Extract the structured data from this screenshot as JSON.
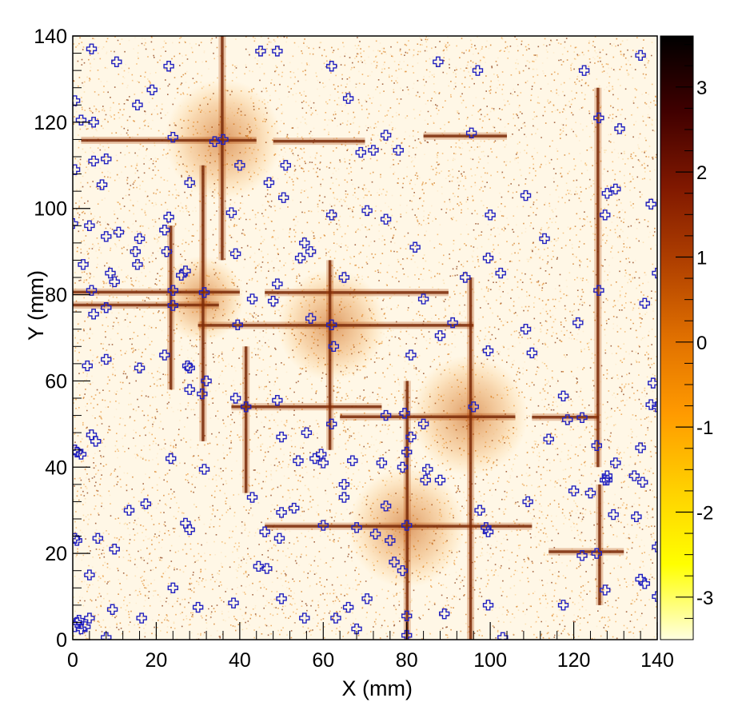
{
  "chart_data": {
    "type": "heatmap",
    "title": "",
    "xlabel": "X (mm)",
    "ylabel": "Y (mm)",
    "xlim": [
      0,
      140
    ],
    "ylim": [
      0,
      140
    ],
    "x_ticks": [
      0,
      20,
      40,
      60,
      80,
      100,
      120,
      140
    ],
    "y_ticks": [
      0,
      20,
      40,
      60,
      80,
      100,
      120,
      140
    ],
    "z_range": [
      -3.5,
      3.6
    ],
    "colorbar_ticks": [
      3,
      2,
      1,
      0,
      -1,
      -2,
      -3
    ],
    "colormap": [
      "#ffffe0",
      "#ffff00",
      "#ffd000",
      "#ff9a00",
      "#e07000",
      "#b04000",
      "#801800",
      "#400000",
      "#000000"
    ],
    "horizontal_lines": [
      {
        "y": 115.8,
        "x0": 2,
        "x1": 44
      },
      {
        "y": 115.6,
        "x0": 48,
        "x1": 70
      },
      {
        "y": 80.6,
        "x0": 0,
        "x1": 40
      },
      {
        "y": 80.5,
        "x0": 46,
        "x1": 90
      },
      {
        "y": 77.6,
        "x0": 0,
        "x1": 35
      },
      {
        "y": 72.9,
        "x0": 30,
        "x1": 96
      },
      {
        "y": 54,
        "x0": 38,
        "x1": 74
      },
      {
        "y": 51.7,
        "x0": 64,
        "x1": 106
      },
      {
        "y": 51.6,
        "x0": 110,
        "x1": 126
      },
      {
        "y": 26.3,
        "x0": 46,
        "x1": 110
      },
      {
        "y": 20.4,
        "x0": 114,
        "x1": 132
      },
      {
        "y": 116.8,
        "x0": 84,
        "x1": 104
      }
    ],
    "vertical_lines": [
      {
        "x": 35.8,
        "y0": 88,
        "y1": 140
      },
      {
        "x": 31.2,
        "y0": 46,
        "y1": 110
      },
      {
        "x": 23.5,
        "y0": 58,
        "y1": 96
      },
      {
        "x": 61.6,
        "y0": 44,
        "y1": 88
      },
      {
        "x": 80.1,
        "y0": 0,
        "y1": 60
      },
      {
        "x": 95.3,
        "y0": 0,
        "y1": 84
      },
      {
        "x": 41.5,
        "y0": 34,
        "y1": 68
      },
      {
        "x": 125.8,
        "y0": 40,
        "y1": 128
      },
      {
        "x": 126.2,
        "y0": 8,
        "y1": 36
      }
    ],
    "blobs": [
      {
        "x": 36,
        "y": 116,
        "r": 14
      },
      {
        "x": 62,
        "y": 73,
        "r": 13
      },
      {
        "x": 95,
        "y": 52,
        "r": 14
      },
      {
        "x": 80,
        "y": 26,
        "r": 14
      },
      {
        "x": 31,
        "y": 79,
        "r": 10
      }
    ],
    "markers": [
      [
        4.5,
        137
      ],
      [
        10.5,
        134
      ],
      [
        23,
        133
      ],
      [
        45,
        136.5
      ],
      [
        49,
        136.5
      ],
      [
        62,
        133
      ],
      [
        87.5,
        134
      ],
      [
        97,
        132
      ],
      [
        122.5,
        132
      ],
      [
        136,
        135.5
      ],
      [
        0.5,
        125
      ],
      [
        2,
        120.5
      ],
      [
        5,
        120
      ],
      [
        15.5,
        124
      ],
      [
        19,
        127.5
      ],
      [
        24,
        116.5
      ],
      [
        34,
        115.5
      ],
      [
        36,
        116
      ],
      [
        66,
        125.5
      ],
      [
        75,
        117
      ],
      [
        78,
        113.5
      ],
      [
        95.5,
        117.5
      ],
      [
        126,
        121
      ],
      [
        131,
        118.5
      ],
      [
        0.5,
        109
      ],
      [
        5,
        111
      ],
      [
        7,
        105.5
      ],
      [
        28,
        106
      ],
      [
        40,
        110
      ],
      [
        47,
        106
      ],
      [
        51,
        110
      ],
      [
        69,
        113
      ],
      [
        72,
        113.5
      ],
      [
        8,
        111.5
      ],
      [
        0,
        96.5
      ],
      [
        4,
        96
      ],
      [
        8,
        93.5
      ],
      [
        11,
        94.5
      ],
      [
        16,
        93
      ],
      [
        22,
        95
      ],
      [
        23,
        98
      ],
      [
        38,
        99
      ],
      [
        50.5,
        102.5
      ],
      [
        62,
        98.5
      ],
      [
        70.5,
        99.5
      ],
      [
        75,
        97.5
      ],
      [
        100,
        98.5
      ],
      [
        108.5,
        103
      ],
      [
        113,
        93
      ],
      [
        127.5,
        98.5
      ],
      [
        128,
        103.5
      ],
      [
        130,
        104.5
      ],
      [
        138.5,
        101
      ],
      [
        2.5,
        87
      ],
      [
        9,
        85
      ],
      [
        10,
        83
      ],
      [
        15,
        90
      ],
      [
        15.5,
        87
      ],
      [
        22.5,
        90
      ],
      [
        26,
        84.5
      ],
      [
        27,
        85.5
      ],
      [
        39,
        89.5
      ],
      [
        43,
        79
      ],
      [
        49,
        82.5
      ],
      [
        54.5,
        88.5
      ],
      [
        55.5,
        92
      ],
      [
        57,
        90
      ],
      [
        65,
        84
      ],
      [
        82,
        91
      ],
      [
        94,
        84
      ],
      [
        99.5,
        88.5
      ],
      [
        102.5,
        85
      ],
      [
        126,
        81
      ],
      [
        140,
        85
      ],
      [
        4.5,
        81
      ],
      [
        5,
        75.5
      ],
      [
        8,
        77
      ],
      [
        24,
        81
      ],
      [
        24,
        77.5
      ],
      [
        31.5,
        80.5
      ],
      [
        39.5,
        73
      ],
      [
        48,
        78.5
      ],
      [
        57,
        74.5
      ],
      [
        62,
        73
      ],
      [
        62.5,
        68
      ],
      [
        81,
        66
      ],
      [
        84,
        79
      ],
      [
        88,
        70.5
      ],
      [
        91,
        73.5
      ],
      [
        99.5,
        67
      ],
      [
        108.5,
        72
      ],
      [
        110,
        66.5
      ],
      [
        121,
        73.5
      ],
      [
        137,
        78
      ],
      [
        3.5,
        63.5
      ],
      [
        8,
        65
      ],
      [
        16,
        63
      ],
      [
        22,
        66
      ],
      [
        27.5,
        63.5
      ],
      [
        28,
        63
      ],
      [
        32,
        60
      ],
      [
        31,
        57
      ],
      [
        28,
        58
      ],
      [
        39,
        56
      ],
      [
        41.5,
        54
      ],
      [
        49,
        55.5
      ],
      [
        62,
        50
      ],
      [
        75,
        52
      ],
      [
        79.5,
        52.5
      ],
      [
        81,
        47
      ],
      [
        84,
        50
      ],
      [
        96,
        54
      ],
      [
        114,
        46.5
      ],
      [
        117.5,
        56.5
      ],
      [
        118.5,
        51
      ],
      [
        122,
        51.5
      ],
      [
        125.5,
        45
      ],
      [
        139,
        59.5
      ],
      [
        138.5,
        54.5
      ],
      [
        140,
        54
      ],
      [
        0.5,
        44
      ],
      [
        1,
        43.5
      ],
      [
        2,
        43
      ],
      [
        4.5,
        47.5
      ],
      [
        5.5,
        46
      ],
      [
        23.5,
        42
      ],
      [
        31.5,
        39.5
      ],
      [
        50,
        47
      ],
      [
        54,
        41.5
      ],
      [
        58,
        42
      ],
      [
        59.5,
        43
      ],
      [
        60,
        41
      ],
      [
        56,
        48
      ],
      [
        67,
        41.5
      ],
      [
        65,
        36
      ],
      [
        74,
        41
      ],
      [
        79,
        40
      ],
      [
        80,
        43.5
      ],
      [
        85,
        39.5
      ],
      [
        84.5,
        37
      ],
      [
        88,
        37
      ],
      [
        127.5,
        37
      ],
      [
        128,
        38
      ],
      [
        128,
        37
      ],
      [
        130,
        41
      ],
      [
        134.5,
        38
      ],
      [
        136,
        44.5
      ],
      [
        136.5,
        36.5
      ],
      [
        13.5,
        30
      ],
      [
        17.5,
        31.5
      ],
      [
        27,
        27
      ],
      [
        28,
        25.5
      ],
      [
        43,
        33
      ],
      [
        46,
        25
      ],
      [
        49.5,
        23.5
      ],
      [
        50,
        29.5
      ],
      [
        53,
        30.5
      ],
      [
        60,
        26.5
      ],
      [
        65,
        33
      ],
      [
        68,
        26
      ],
      [
        72.5,
        24.5
      ],
      [
        75,
        31
      ],
      [
        76,
        23
      ],
      [
        80,
        26.5
      ],
      [
        97.5,
        30
      ],
      [
        99,
        26
      ],
      [
        99.5,
        25
      ],
      [
        109,
        32
      ],
      [
        122,
        19.5
      ],
      [
        124,
        34
      ],
      [
        129.5,
        29
      ],
      [
        135,
        28.5
      ],
      [
        140,
        21.5
      ],
      [
        0.5,
        23.5
      ],
      [
        1,
        23
      ],
      [
        4,
        15
      ],
      [
        6,
        23.5
      ],
      [
        10,
        21
      ],
      [
        24,
        12
      ],
      [
        44.5,
        17
      ],
      [
        46.5,
        16.5
      ],
      [
        77,
        18
      ],
      [
        79,
        16
      ],
      [
        120,
        34.5
      ],
      [
        125.5,
        20
      ],
      [
        127.5,
        11.5
      ],
      [
        136,
        14
      ],
      [
        137,
        13
      ],
      [
        0.5,
        3
      ],
      [
        1,
        4
      ],
      [
        1.5,
        4.5
      ],
      [
        2,
        2.5
      ],
      [
        3,
        3
      ],
      [
        4,
        5
      ],
      [
        9.5,
        7
      ],
      [
        16.5,
        5
      ],
      [
        30,
        7.5
      ],
      [
        38.5,
        8.5
      ],
      [
        50,
        9.5
      ],
      [
        55.5,
        5
      ],
      [
        63,
        5
      ],
      [
        66,
        7.5
      ],
      [
        68,
        2.5
      ],
      [
        70.5,
        9.5
      ],
      [
        80,
        5.5
      ],
      [
        80,
        1
      ],
      [
        89,
        6
      ],
      [
        99.5,
        8
      ],
      [
        103,
        0.5
      ],
      [
        117.5,
        8
      ],
      [
        8,
        0.5
      ],
      [
        140,
        10
      ]
    ]
  }
}
